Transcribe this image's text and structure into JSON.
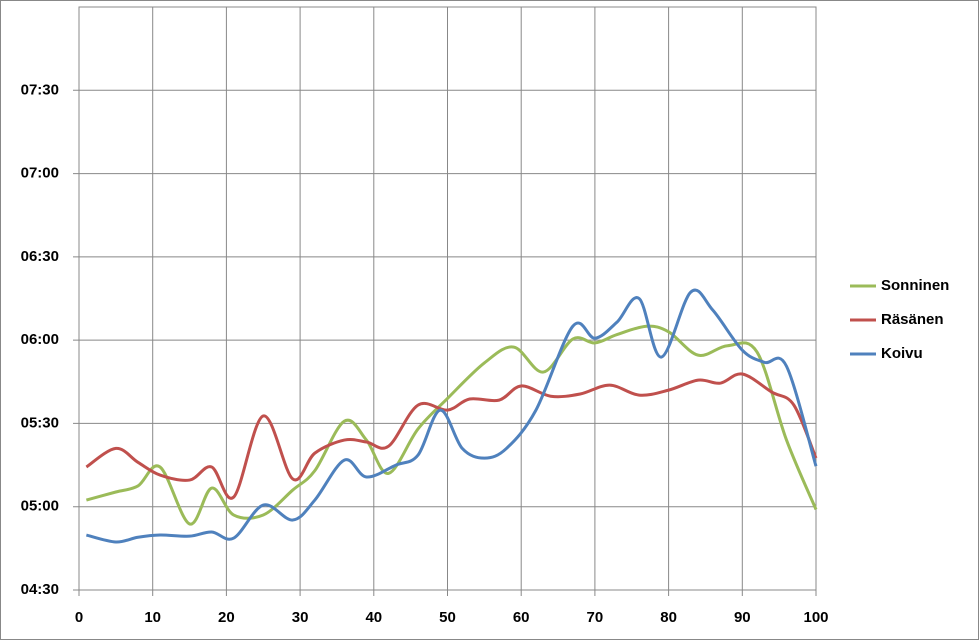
{
  "chart_data": {
    "type": "line",
    "xlim": [
      0,
      100
    ],
    "xticks": [
      0,
      10,
      20,
      30,
      40,
      50,
      60,
      70,
      80,
      90,
      100
    ],
    "ylim": [
      270,
      480
    ],
    "yticks": [
      {
        "value": 270,
        "label": "04:30"
      },
      {
        "value": 300,
        "label": "05:00"
      },
      {
        "value": 330,
        "label": "05:30"
      },
      {
        "value": 360,
        "label": "06:00"
      },
      {
        "value": 390,
        "label": "06:30"
      },
      {
        "value": 420,
        "label": "07:00"
      },
      {
        "value": 450,
        "label": "07:30"
      }
    ],
    "grid": true,
    "legend": "right",
    "series": [
      {
        "name": "Sonninen",
        "color": "#9bbb59",
        "x": [
          1,
          5,
          8,
          11,
          15,
          18,
          21,
          25,
          29,
          32,
          36,
          39,
          42,
          46,
          50,
          55,
          59,
          63,
          67,
          70,
          73,
          77,
          80,
          84,
          88,
          92,
          96,
          100
        ],
        "values": [
          302.4,
          305.3,
          307.5,
          314.3,
          293.8,
          306.7,
          297,
          297,
          306,
          313,
          330.8,
          324,
          312,
          328,
          339,
          351.8,
          357.5,
          348.5,
          360.4,
          359,
          362,
          365,
          363,
          354.6,
          358,
          355.7,
          324,
          299
        ]
      },
      {
        "name": "Räsänen",
        "color": "#c0504d",
        "x": [
          1,
          5,
          8,
          11,
          15,
          18,
          21,
          25,
          29,
          32,
          36,
          39,
          42,
          46,
          50,
          53,
          57,
          60,
          64,
          68,
          72,
          76,
          80,
          84,
          87,
          90,
          94,
          97,
          100
        ],
        "values": [
          314.3,
          321,
          316,
          311.4,
          309.6,
          314.3,
          303.5,
          332.7,
          310,
          319.3,
          324,
          323.3,
          321.8,
          336.6,
          334.8,
          338.8,
          338.4,
          343.5,
          339.8,
          340.6,
          343.8,
          340.2,
          342,
          345.6,
          344.5,
          347.8,
          341.3,
          336.6,
          317.5
        ]
      },
      {
        "name": "Koivu",
        "color": "#4f81bd",
        "x": [
          1,
          5,
          8,
          11,
          15,
          18,
          21,
          25,
          29,
          32,
          36,
          39,
          43,
          46,
          49,
          52,
          55,
          58,
          62,
          67,
          70,
          73,
          76,
          79,
          83,
          86,
          90,
          93,
          96,
          100
        ],
        "values": [
          289.8,
          287.3,
          289,
          289.8,
          289.4,
          290.9,
          288.7,
          300.6,
          295.2,
          302.4,
          316.8,
          310.7,
          315,
          318.6,
          334.8,
          321,
          317.5,
          321,
          334.8,
          365,
          360.7,
          366.5,
          375,
          353.9,
          377.3,
          370.8,
          356.4,
          352,
          350.6,
          314.6
        ]
      }
    ]
  }
}
